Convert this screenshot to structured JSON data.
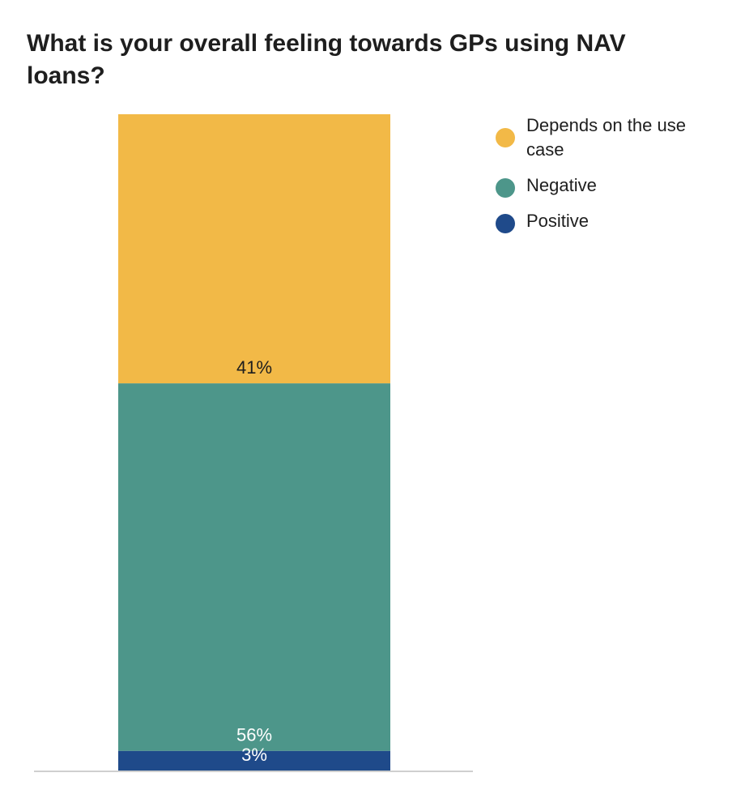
{
  "title": "What is your overall feeling towards GPs using NAV loans?",
  "chart_data": {
    "type": "bar",
    "stacked": true,
    "categories": [
      ""
    ],
    "series": [
      {
        "name": "Positive",
        "values": [
          3
        ],
        "label": "3%",
        "color": "#1f4a8a",
        "label_color": "#ffffff"
      },
      {
        "name": "Negative",
        "values": [
          56
        ],
        "label": "56%",
        "color": "#4d968a",
        "label_color": "#ffffff"
      },
      {
        "name": "Depends on the use case",
        "values": [
          41
        ],
        "label": "41%",
        "color": "#f2b947",
        "label_color": "#1e1e1e"
      }
    ],
    "ylim": [
      0,
      100
    ],
    "legend": {
      "position": "top-right",
      "items": [
        {
          "label": "Depends on the use case",
          "color": "#f2b947"
        },
        {
          "label": "Negative",
          "color": "#4d968a"
        },
        {
          "label": "Positive",
          "color": "#1f4a8a"
        }
      ]
    },
    "grid": false
  }
}
